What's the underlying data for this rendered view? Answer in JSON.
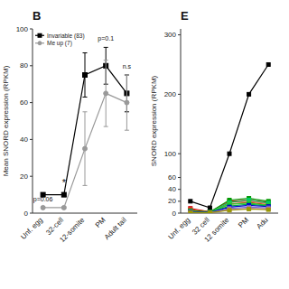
{
  "chart_data": [
    {
      "type": "line",
      "title": "B",
      "y_label": "Mean SNORD expression (RPKM)",
      "categories": [
        "Unf. egg",
        "32-cell",
        "12-somite",
        "PM",
        "Adult tail"
      ],
      "series": [
        {
          "name": "Invariable (83)",
          "color": "#000000",
          "marker": "square",
          "values": [
            10,
            10,
            75,
            80,
            65
          ],
          "errors": [
            1,
            1,
            12,
            10,
            10
          ]
        },
        {
          "name": "Me up (7)",
          "color": "#999999",
          "marker": "circle",
          "values": [
            3,
            3,
            35,
            65,
            60
          ],
          "errors": [
            0.5,
            0.5,
            20,
            18,
            15
          ]
        }
      ],
      "annotations": [
        {
          "text": "*",
          "x": "32-cell",
          "y": 14
        },
        {
          "text": "p=0.1",
          "x": "PM",
          "y": 93
        },
        {
          "text": "n.s",
          "x": "Adult tail",
          "y": 78
        },
        {
          "text": "p=0.06",
          "x": "Unf. egg",
          "y": 6
        }
      ],
      "ylim": [
        0,
        100
      ],
      "yticks": [
        0,
        20,
        40,
        60,
        80,
        100
      ],
      "legend": "upper left",
      "grid": false
    },
    {
      "type": "line",
      "title": "E",
      "y_label": "SNORD expression (RPKM)",
      "categories": [
        "Unf. egg",
        "32 cell",
        "12 somite",
        "PM",
        "Adu"
      ],
      "series": [
        {
          "color": "#000000",
          "marker": "square",
          "values": [
            20,
            9,
            100,
            200,
            250
          ]
        },
        {
          "color": "#cc0000",
          "marker": "square",
          "values": [
            8,
            2,
            20,
            22,
            18
          ]
        },
        {
          "color": "#ff6666",
          "marker": "square",
          "values": [
            6,
            2,
            18,
            20,
            16
          ]
        },
        {
          "color": "#cc3300",
          "marker": "square",
          "values": [
            5,
            2,
            15,
            18,
            14
          ]
        },
        {
          "color": "#009900",
          "marker": "square",
          "values": [
            4,
            2,
            22,
            25,
            20
          ]
        },
        {
          "color": "#00cc66",
          "marker": "square",
          "values": [
            3,
            1,
            18,
            22,
            17
          ]
        },
        {
          "color": "#33cc33",
          "marker": "square",
          "values": [
            3,
            1,
            15,
            17,
            13
          ]
        },
        {
          "color": "#00aa44",
          "marker": "square",
          "values": [
            2,
            1,
            12,
            15,
            12
          ]
        },
        {
          "color": "#0000cc",
          "marker": "square",
          "values": [
            2,
            1,
            10,
            13,
            11
          ]
        },
        {
          "color": "#6666cc",
          "marker": "square",
          "values": [
            1,
            0.5,
            8,
            10,
            9
          ]
        },
        {
          "color": "#cc66cc",
          "marker": "square",
          "values": [
            1,
            0.5,
            6,
            8,
            7
          ]
        },
        {
          "color": "#999900",
          "marker": "square",
          "values": [
            1,
            0.5,
            5,
            7,
            6
          ]
        }
      ],
      "ylim": [
        0,
        310
      ],
      "yticks": [
        0,
        20,
        40,
        60,
        100,
        200,
        300
      ],
      "grid": false
    }
  ]
}
